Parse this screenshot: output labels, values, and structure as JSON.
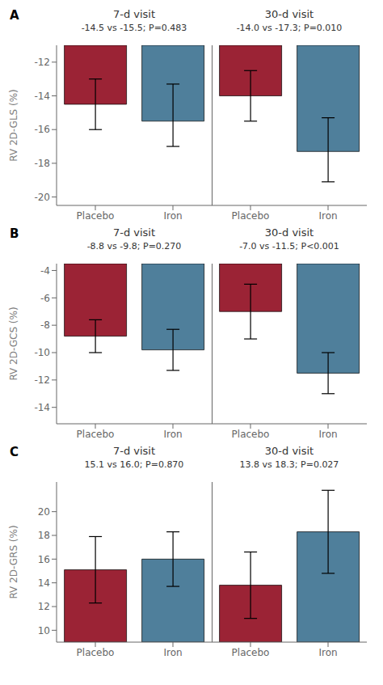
{
  "chart_data": [
    {
      "type": "bar",
      "label": "A",
      "ylabel": "RV 2D-GLS (%)",
      "group_titles": [
        "7-d visit",
        "30-d visit"
      ],
      "categories": [
        "Placebo",
        "Iron",
        "Placebo",
        "Iron"
      ],
      "values": [
        -14.5,
        -15.5,
        -14.0,
        -17.3
      ],
      "error_lo": [
        1.5,
        1.5,
        1.5,
        1.8
      ],
      "error_hi": [
        1.5,
        2.2,
        1.5,
        2.0
      ],
      "colors": [
        "#9B2335",
        "#4F7F9B",
        "#9B2335",
        "#4F7F9B"
      ],
      "ylim": [
        -20.5,
        -11.0
      ],
      "yticks": [
        -20,
        -18,
        -16,
        -14,
        -12
      ],
      "annotations": [
        "-14.5 vs -15.5; P=0.483",
        "-14.0 vs -17.3; P=0.010"
      ]
    },
    {
      "type": "bar",
      "label": "B",
      "ylabel": "RV 2D-GCS (%)",
      "group_titles": [
        "7-d visit",
        "30-d visit"
      ],
      "categories": [
        "Placebo",
        "Iron",
        "Placebo",
        "Iron"
      ],
      "values": [
        -8.8,
        -9.8,
        -7.0,
        -11.5
      ],
      "error_lo": [
        1.2,
        1.5,
        2.0,
        1.5
      ],
      "error_hi": [
        1.2,
        1.5,
        2.0,
        1.5
      ],
      "colors": [
        "#9B2335",
        "#4F7F9B",
        "#9B2335",
        "#4F7F9B"
      ],
      "ylim": [
        -15.2,
        -3.5
      ],
      "yticks": [
        -14,
        -12,
        -10,
        -8,
        -6,
        -4
      ],
      "annotations": [
        "-8.8 vs -9.8; P=0.270",
        "-7.0 vs -11.5; P<0.001"
      ]
    },
    {
      "type": "bar",
      "label": "C",
      "ylabel": "RV 2D-GRS (%)",
      "group_titles": [
        "7-d visit",
        "30-d visit"
      ],
      "categories": [
        "Placebo",
        "Iron",
        "Placebo",
        "Iron"
      ],
      "values": [
        15.1,
        16.0,
        13.8,
        18.3
      ],
      "error_lo": [
        2.8,
        2.3,
        2.8,
        3.5
      ],
      "error_hi": [
        2.8,
        2.3,
        2.8,
        3.5
      ],
      "colors": [
        "#9B2335",
        "#4F7F9B",
        "#9B2335",
        "#4F7F9B"
      ],
      "ylim": [
        9.0,
        22.5
      ],
      "yticks": [
        10,
        12,
        14,
        16,
        18,
        20
      ],
      "annotations": [
        "15.1 vs 16.0; P=0.870",
        "13.8 vs 18.3; P=0.027"
      ]
    }
  ]
}
